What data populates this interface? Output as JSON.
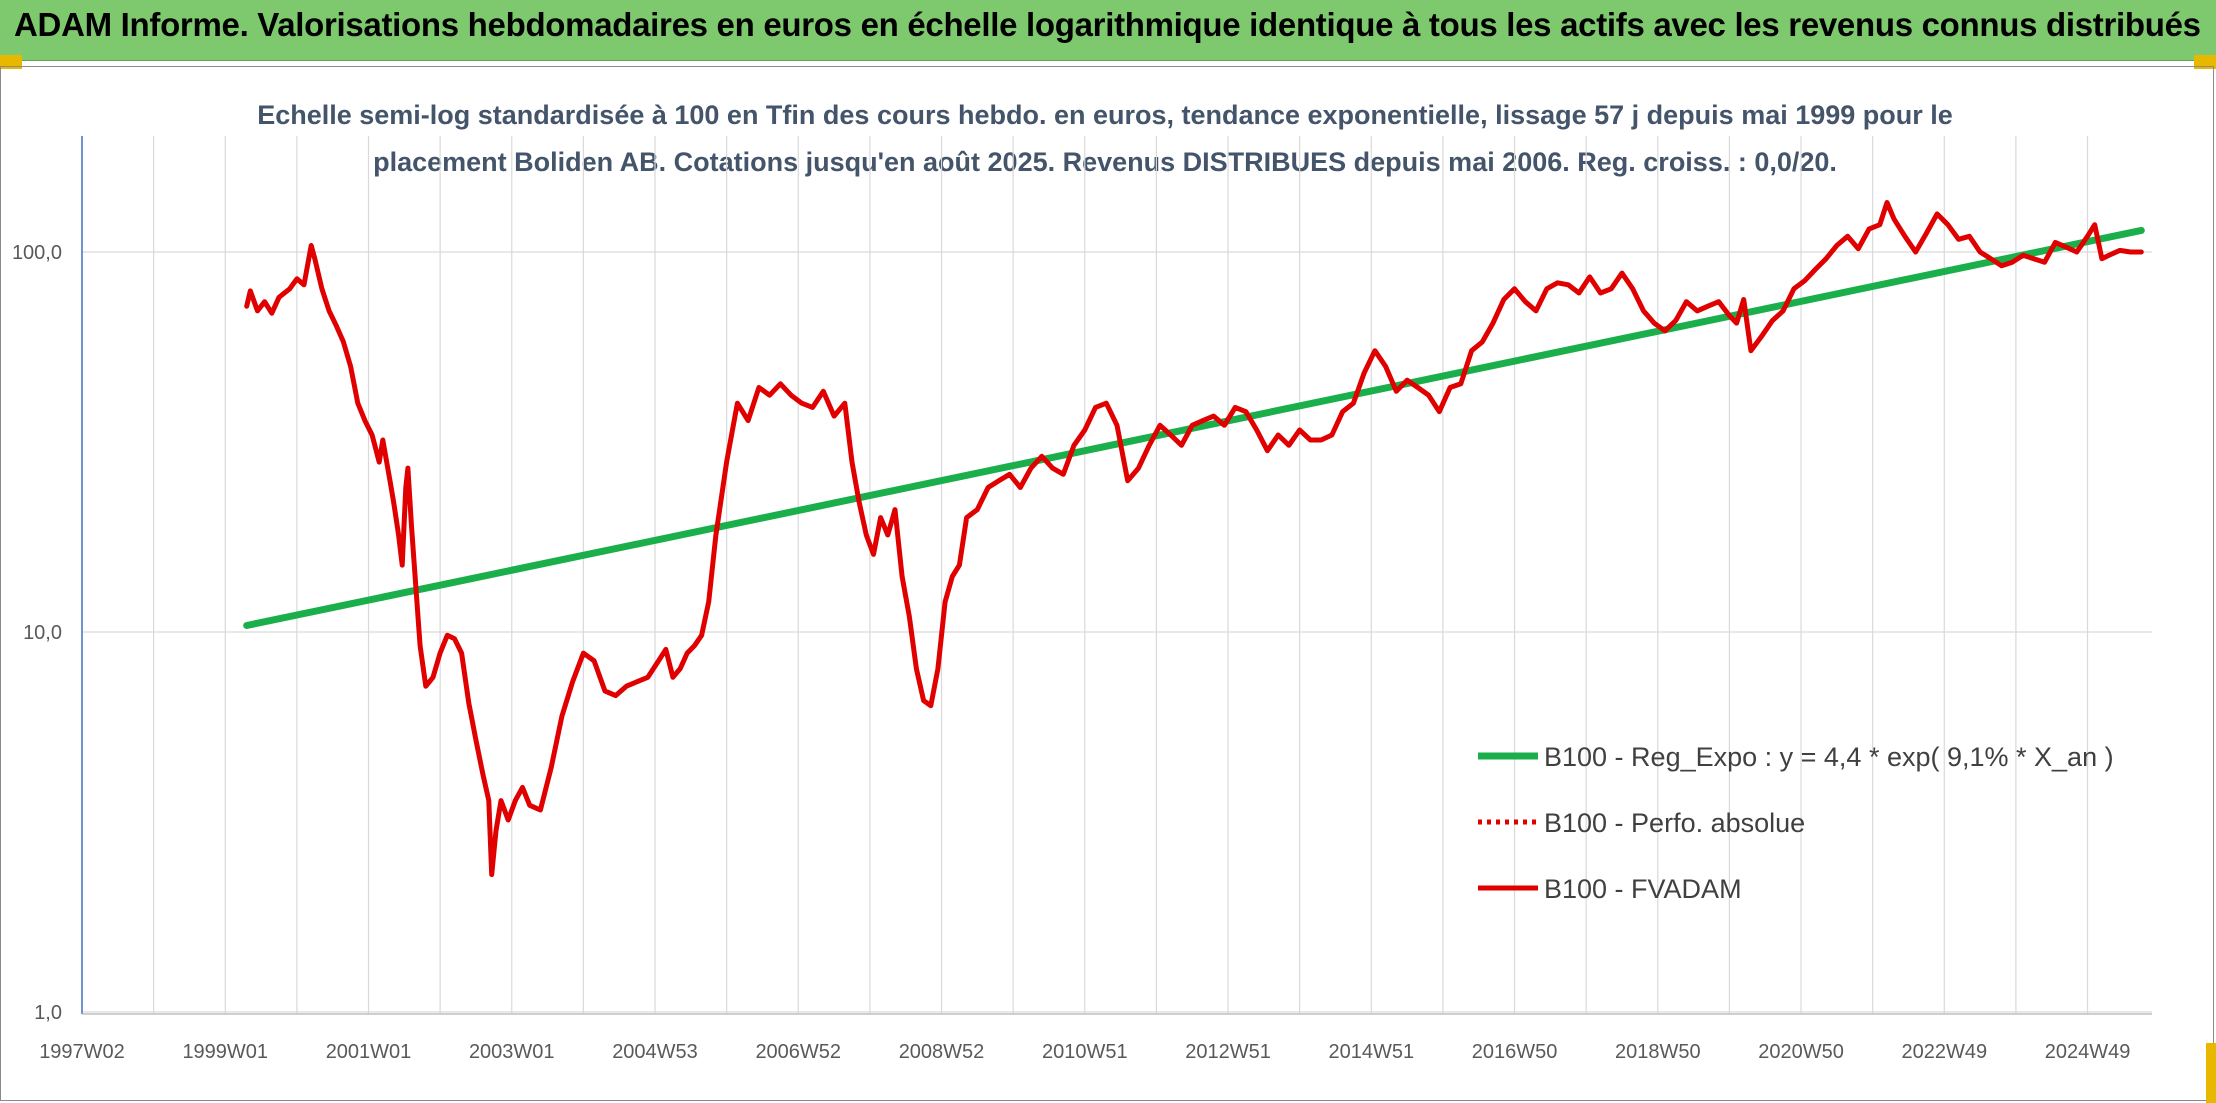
{
  "banner": {
    "title": "ADAM Informe. Valorisations hebdomadaires en euros en échelle logarithmique identique à tous les actifs avec les revenus connus distribués"
  },
  "chart_data": {
    "type": "line",
    "title": "Echelle semi-log standardisée à 100 en Tfin des cours hebdo. en euros, tendance exponentielle, lissage 57 j depuis mai 1999 pour le placement Boliden AB. Cotations jusqu'en août 2025. Revenus DISTRIBUES depuis mai 2006. Reg. croiss. : 0,0/20.",
    "xlabel": "",
    "ylabel": "",
    "y_scale": "log",
    "ylim": [
      1,
      200
    ],
    "xlim": [
      1997.0,
      2025.9
    ],
    "y_ticks": [
      {
        "value": 1,
        "label": "1,0"
      },
      {
        "value": 10,
        "label": "10,0"
      },
      {
        "value": 100,
        "label": "100,0"
      }
    ],
    "x_ticks": [
      {
        "value": 1997.0,
        "label": "1997W02"
      },
      {
        "value": 1999.0,
        "label": "1999W01"
      },
      {
        "value": 2001.0,
        "label": "2001W01"
      },
      {
        "value": 2003.0,
        "label": "2003W01"
      },
      {
        "value": 2005.0,
        "label": "2004W53"
      },
      {
        "value": 2007.0,
        "label": "2006W52"
      },
      {
        "value": 2009.0,
        "label": "2008W52"
      },
      {
        "value": 2011.0,
        "label": "2010W51"
      },
      {
        "value": 2013.0,
        "label": "2012W51"
      },
      {
        "value": 2015.0,
        "label": "2014W51"
      },
      {
        "value": 2017.0,
        "label": "2016W50"
      },
      {
        "value": 2019.0,
        "label": "2018W50"
      },
      {
        "value": 2021.0,
        "label": "2020W50"
      },
      {
        "value": 2023.0,
        "label": "2022W49"
      },
      {
        "value": 2025.0,
        "label": "2024W49"
      }
    ],
    "grid": true,
    "legend_position": "bottom-right",
    "series": [
      {
        "name": "B100 - Reg_Expo : y = 4,4 * exp( 9,1% * X_an )",
        "color": "#1aaf4b",
        "style": "solid",
        "x": [
          1999.3,
          2025.75
        ],
        "y": [
          10.4,
          114
        ]
      },
      {
        "name": "B100 - Perfo. absolue",
        "color": "#e00000",
        "style": "dotted",
        "x": [],
        "y": []
      },
      {
        "name": "B100 - FVADAM",
        "color": "#e00000",
        "style": "solid",
        "x": [
          1999.3,
          1999.35,
          1999.45,
          1999.55,
          1999.65,
          1999.75,
          1999.9,
          2000.0,
          2000.1,
          2000.2,
          2000.25,
          2000.35,
          2000.45,
          2000.55,
          2000.65,
          2000.75,
          2000.85,
          2000.95,
          2001.05,
          2001.15,
          2001.2,
          2001.3,
          2001.35,
          2001.42,
          2001.47,
          2001.52,
          2001.55,
          2001.6,
          2001.65,
          2001.72,
          2001.8,
          2001.9,
          2002.0,
          2002.1,
          2002.2,
          2002.3,
          2002.4,
          2002.5,
          2002.6,
          2002.68,
          2002.72,
          2002.78,
          2002.85,
          2002.95,
          2003.05,
          2003.15,
          2003.25,
          2003.4,
          2003.55,
          2003.7,
          2003.85,
          2004.0,
          2004.15,
          2004.3,
          2004.45,
          2004.6,
          2004.75,
          2004.9,
          2005.05,
          2005.15,
          2005.25,
          2005.35,
          2005.45,
          2005.55,
          2005.65,
          2005.75,
          2005.85,
          2006.0,
          2006.15,
          2006.3,
          2006.45,
          2006.6,
          2006.75,
          2006.9,
          2007.05,
          2007.2,
          2007.35,
          2007.5,
          2007.65,
          2007.75,
          2007.85,
          2007.95,
          2008.05,
          2008.15,
          2008.25,
          2008.35,
          2008.45,
          2008.55,
          2008.65,
          2008.75,
          2008.85,
          2008.95,
          2009.05,
          2009.15,
          2009.25,
          2009.35,
          2009.5,
          2009.65,
          2009.8,
          2009.95,
          2010.1,
          2010.25,
          2010.4,
          2010.55,
          2010.7,
          2010.85,
          2011.0,
          2011.15,
          2011.3,
          2011.45,
          2011.6,
          2011.75,
          2011.9,
          2012.05,
          2012.2,
          2012.35,
          2012.5,
          2012.65,
          2012.8,
          2012.95,
          2013.1,
          2013.25,
          2013.4,
          2013.55,
          2013.7,
          2013.85,
          2014.0,
          2014.15,
          2014.3,
          2014.45,
          2014.6,
          2014.75,
          2014.9,
          2015.05,
          2015.2,
          2015.35,
          2015.5,
          2015.65,
          2015.8,
          2015.95,
          2016.1,
          2016.25,
          2016.4,
          2016.55,
          2016.7,
          2016.85,
          2017.0,
          2017.15,
          2017.3,
          2017.45,
          2017.6,
          2017.75,
          2017.9,
          2018.05,
          2018.2,
          2018.35,
          2018.5,
          2018.65,
          2018.8,
          2018.95,
          2019.1,
          2019.25,
          2019.4,
          2019.55,
          2019.7,
          2019.85,
          2020.0,
          2020.1,
          2020.2,
          2020.3,
          2020.45,
          2020.6,
          2020.75,
          2020.9,
          2021.05,
          2021.2,
          2021.35,
          2021.5,
          2021.65,
          2021.8,
          2021.95,
          2022.1,
          2022.2,
          2022.3,
          2022.45,
          2022.6,
          2022.75,
          2022.9,
          2023.05,
          2023.2,
          2023.35,
          2023.5,
          2023.65,
          2023.8,
          2023.95,
          2024.1,
          2024.25,
          2024.4,
          2024.55,
          2024.7,
          2024.85,
          2025.0,
          2025.1,
          2025.2,
          2025.3,
          2025.45,
          2025.6,
          2025.75
        ],
        "y": [
          72,
          79,
          70,
          74,
          69,
          76,
          80,
          85,
          82,
          104,
          96,
          80,
          70,
          64,
          58,
          50,
          40,
          36,
          33,
          28,
          32,
          25,
          22,
          18,
          15,
          24,
          27,
          19,
          14,
          9.2,
          7.2,
          7.6,
          8.8,
          9.8,
          9.6,
          8.8,
          6.5,
          5.2,
          4.2,
          3.6,
          2.3,
          3.0,
          3.6,
          3.2,
          3.6,
          3.9,
          3.5,
          3.4,
          4.4,
          6.0,
          7.4,
          8.8,
          8.4,
          7.0,
          6.8,
          7.2,
          7.4,
          7.6,
          8.4,
          9.0,
          7.6,
          8.0,
          8.8,
          9.2,
          9.8,
          12,
          18,
          28,
          40,
          36,
          44,
          42,
          45,
          42,
          40,
          39,
          43,
          37,
          40,
          28,
          22,
          18,
          16,
          20,
          18,
          21,
          14,
          11,
          8,
          6.6,
          6.4,
          8,
          12,
          14,
          15,
          20,
          21,
          24,
          25,
          26,
          24,
          27,
          29,
          27,
          26,
          31,
          34,
          39,
          40,
          35,
          25,
          27,
          31,
          35,
          33,
          31,
          35,
          36,
          37,
          35,
          39,
          38,
          34,
          30,
          33,
          31,
          34,
          32,
          32,
          33,
          38,
          40,
          48,
          55,
          50,
          43,
          46,
          44,
          42,
          38,
          44,
          45,
          55,
          58,
          65,
          75,
          80,
          74,
          70,
          80,
          83,
          82,
          78,
          86,
          78,
          80,
          88,
          80,
          70,
          65,
          62,
          66,
          74,
          70,
          72,
          74,
          68,
          65,
          75,
          55,
          60,
          66,
          70,
          80,
          84,
          90,
          96,
          104,
          110,
          102,
          115,
          118,
          135,
          122,
          110,
          100,
          112,
          126,
          118,
          108,
          110,
          100,
          96,
          92,
          94,
          98,
          96,
          94,
          106,
          103,
          100,
          110,
          118,
          96,
          98,
          101,
          100,
          100
        ]
      }
    ]
  },
  "legend": {
    "items": [
      {
        "label": "B100 - Reg_Expo : y = 4,4 * exp( 9,1% *  X_an )",
        "color": "#1aaf4b",
        "style": "solid"
      },
      {
        "label": "B100 - Perfo. absolue",
        "color": "#e00000",
        "style": "dotted"
      },
      {
        "label": "B100 - FVADAM",
        "color": "#e00000",
        "style": "solid"
      }
    ]
  }
}
